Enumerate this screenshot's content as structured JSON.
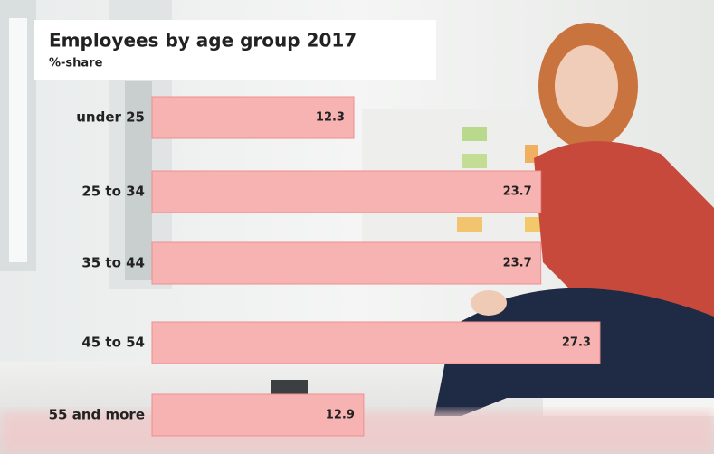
{
  "chart_data": {
    "type": "bar",
    "orientation": "horizontal",
    "title": "Employees by age group 2017",
    "subtitle": "%-share",
    "categories": [
      "under 25",
      "25 to 34",
      "35 to 44",
      "45 to 54",
      "55 and more"
    ],
    "values": [
      12.3,
      23.7,
      23.7,
      27.3,
      12.9
    ],
    "color": "#f7b3b1"
  }
}
